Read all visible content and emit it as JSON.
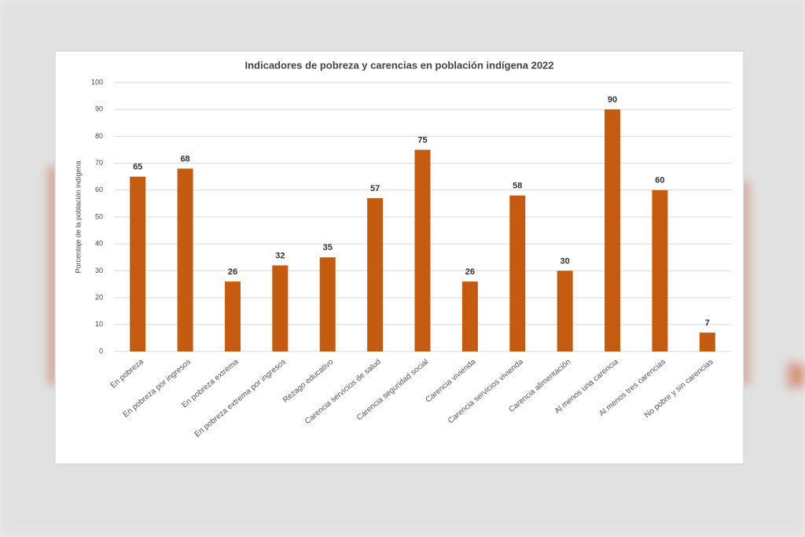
{
  "chart_data": {
    "type": "bar",
    "title": "Indicadores de pobreza y carencias en población indígena 2022",
    "y_label": "Porcentaje de la población indígena",
    "categories": [
      "En pobreza",
      "En pobreza por ingresos",
      "En pobreza extrema",
      "En pobreza extrema por ingresos",
      "Rezago educativo",
      "Carencia servicios de salud",
      "Carencia seguridad social",
      "Carencia vivienda",
      "Carencia servicios vivienda",
      "Carencia alimentación",
      "Al menos una carencia",
      "Al menos tres carencias",
      "No pobre y sin carencias"
    ],
    "values": [
      65,
      68,
      26,
      32,
      35,
      57,
      75,
      26,
      58,
      30,
      90,
      60,
      7
    ],
    "color": "#c55a11",
    "ylim": [
      0,
      100
    ],
    "yticks": [
      0,
      10,
      20,
      30,
      40,
      50,
      60,
      70,
      80,
      90,
      100
    ],
    "grid": true
  }
}
